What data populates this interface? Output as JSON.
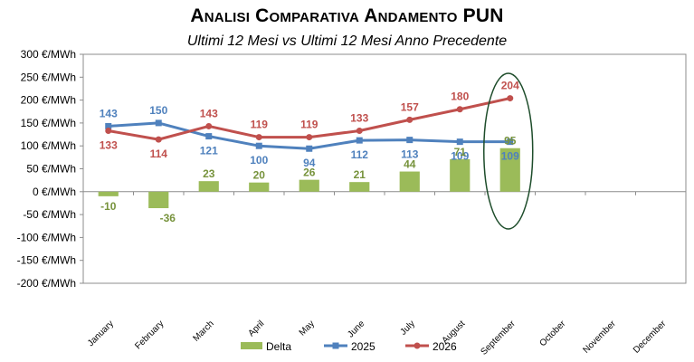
{
  "title": "Analisi Comparativa Andamento PUN",
  "subtitle": "Ultimi 12 Mesi vs Ultimi 12 Mesi Anno Precedente",
  "chart_data": {
    "type": "bar",
    "categories": [
      "January",
      "February",
      "March",
      "April",
      "May",
      "June",
      "July",
      "August",
      "September",
      "October",
      "November",
      "December"
    ],
    "ylim": [
      -200,
      300
    ],
    "ytick_step": 50,
    "ytick_unit": " €/MWh",
    "grid": false,
    "legend_placement": "bottom",
    "series": [
      {
        "name": "Delta",
        "kind": "bar",
        "color": "#9BBB59",
        "label_color": "#77933C",
        "values": [
          -10,
          -36,
          23,
          20,
          26,
          21,
          44,
          71,
          95,
          null,
          null,
          null
        ]
      },
      {
        "name": "2025",
        "kind": "line",
        "marker": "square",
        "color": "#4F81BD",
        "label_color": "#4F81BD",
        "values": [
          143,
          150,
          121,
          100,
          94,
          112,
          113,
          109,
          109,
          null,
          null,
          null
        ]
      },
      {
        "name": "2026",
        "kind": "line",
        "marker": "circle",
        "color": "#C0504D",
        "label_color": "#C0504D",
        "values": [
          133,
          114,
          143,
          119,
          119,
          133,
          157,
          180,
          204,
          null,
          null,
          null
        ]
      }
    ],
    "highlight": {
      "category": "September",
      "shape": "ellipse",
      "color": "#1E4D2B"
    }
  }
}
